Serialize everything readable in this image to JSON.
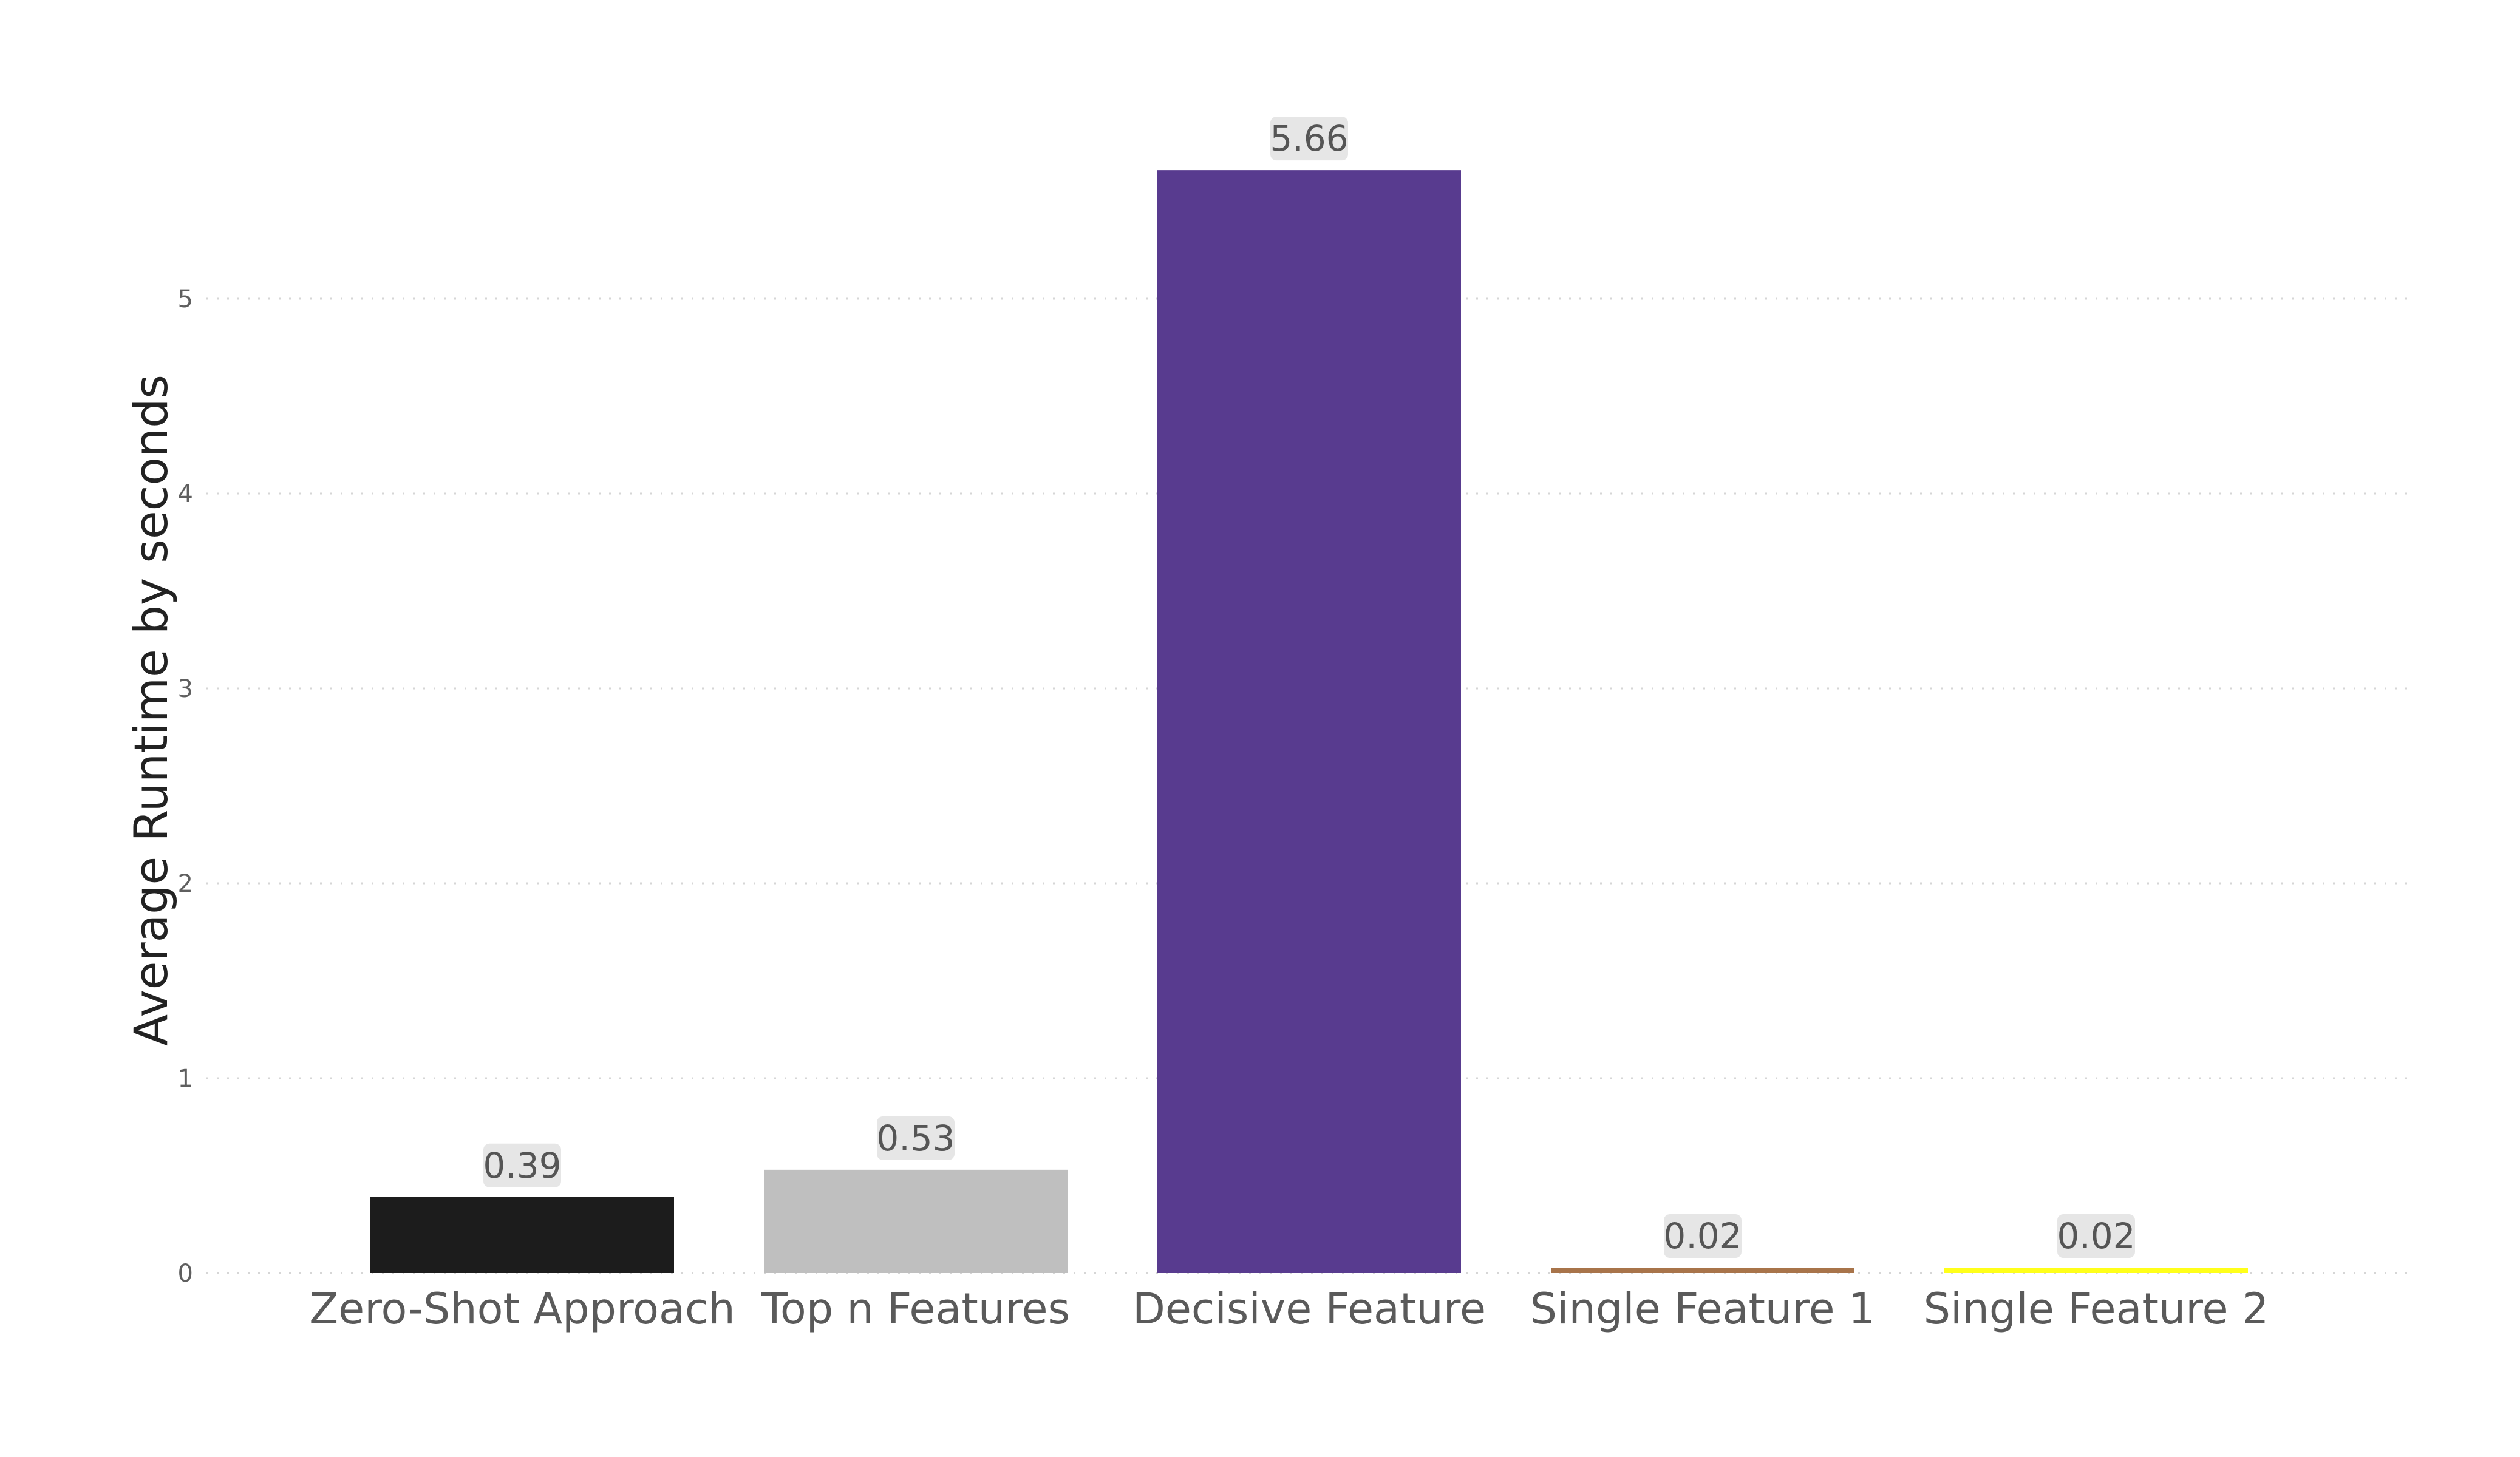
{
  "chart_data": {
    "type": "bar",
    "categories": [
      "Zero-Shot Approach",
      "Top n Features",
      "Decisive Feature",
      "Single Feature 1",
      "Single Feature 2"
    ],
    "values": [
      0.39,
      0.53,
      5.66,
      0.02,
      0.02
    ],
    "data_labels": [
      "0.39",
      "0.53",
      "5.66",
      "0.02",
      "0.02"
    ],
    "colors": [
      "#1c1c1c",
      "#bfbfbf",
      "#583b8f",
      "#a8744a",
      "#ffff1a"
    ],
    "ylabel": "Average Runtime by seconds",
    "xlabel": "",
    "ylim": [
      0,
      6.5
    ],
    "yticks": [
      0,
      1,
      2,
      3,
      4,
      5
    ],
    "grid": true,
    "legend": "none"
  }
}
